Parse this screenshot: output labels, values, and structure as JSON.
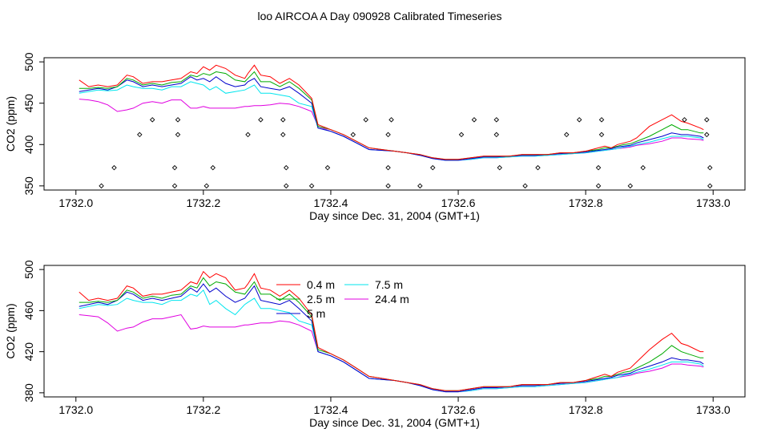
{
  "figure": {
    "title": "loo AIRCOA A  Day 090928  Calibrated Timeseries"
  },
  "colors": {
    "0.4 m": "#ff0000",
    "2.5 m": "#00aa00",
    "5 m": "#0000cc",
    "7.5 m": "#00e5ee",
    "24.4 m": "#e000e0",
    "markers": "#000000"
  },
  "chart_data": [
    {
      "type": "line",
      "title": "",
      "xlabel": "Day since Dec. 31, 2004 (GMT+1)",
      "ylabel": "CO2 (ppm)",
      "xlim": [
        1731.95,
        1733.05
      ],
      "ylim": [
        345,
        505
      ],
      "xticks": [
        "1732.0",
        "1732.2",
        "1732.4",
        "1732.6",
        "1732.8",
        "1733.0"
      ],
      "yticks": [
        "350",
        "400",
        "450",
        "500"
      ],
      "xtick_values": [
        1732.0,
        1732.2,
        1732.4,
        1732.6,
        1732.8,
        1733.0
      ],
      "ytick_values": [
        350,
        400,
        450,
        500
      ],
      "legend": "none",
      "grid": false,
      "x": [
        1732.005,
        1732.02,
        1732.035,
        1732.05,
        1732.065,
        1732.08,
        1732.09,
        1732.105,
        1732.12,
        1732.135,
        1732.15,
        1732.165,
        1732.18,
        1732.19,
        1732.2,
        1732.21,
        1732.22,
        1732.235,
        1732.25,
        1732.265,
        1732.27,
        1732.28,
        1732.29,
        1732.305,
        1732.32,
        1732.335,
        1732.35,
        1732.37,
        1732.38,
        1732.4,
        1732.42,
        1732.44,
        1732.46,
        1732.48,
        1732.5,
        1732.52,
        1732.54,
        1732.56,
        1732.58,
        1732.6,
        1732.62,
        1732.64,
        1732.66,
        1732.68,
        1732.7,
        1732.72,
        1732.74,
        1732.76,
        1732.78,
        1732.8,
        1732.81,
        1732.82,
        1732.83,
        1732.84,
        1732.85,
        1732.86,
        1732.87,
        1732.88,
        1732.9,
        1732.92,
        1732.935,
        1732.95,
        1732.96,
        1732.98,
        1732.985
      ],
      "series": [
        {
          "name": "0.4 m",
          "values": [
            478,
            470,
            472,
            470,
            472,
            484,
            482,
            474,
            476,
            476,
            478,
            480,
            488,
            486,
            494,
            490,
            496,
            492,
            484,
            480,
            486,
            496,
            484,
            482,
            474,
            480,
            472,
            456,
            424,
            418,
            412,
            404,
            396,
            394,
            392,
            390,
            388,
            384,
            382,
            382,
            384,
            386,
            386,
            386,
            388,
            388,
            388,
            390,
            390,
            392,
            394,
            396,
            398,
            396,
            400,
            402,
            404,
            408,
            422,
            430,
            436,
            428,
            426,
            420,
            418
          ]
        },
        {
          "name": "2.5 m",
          "values": [
            468,
            468,
            469,
            468,
            470,
            480,
            478,
            472,
            474,
            472,
            475,
            476,
            484,
            482,
            486,
            484,
            488,
            486,
            478,
            476,
            480,
            488,
            476,
            476,
            470,
            476,
            468,
            454,
            422,
            418,
            412,
            404,
            396,
            394,
            392,
            390,
            388,
            384,
            382,
            382,
            384,
            386,
            386,
            386,
            388,
            388,
            388,
            390,
            390,
            392,
            393,
            394,
            396,
            396,
            398,
            400,
            401,
            404,
            410,
            418,
            424,
            418,
            418,
            414,
            414
          ]
        },
        {
          "name": "5 m",
          "values": [
            464,
            466,
            468,
            466,
            470,
            478,
            476,
            470,
            472,
            470,
            472,
            474,
            482,
            478,
            480,
            476,
            482,
            474,
            470,
            472,
            476,
            480,
            470,
            468,
            466,
            470,
            462,
            450,
            420,
            416,
            410,
            402,
            394,
            393,
            392,
            390,
            387,
            383,
            381,
            381,
            383,
            385,
            385,
            386,
            387,
            387,
            388,
            389,
            390,
            391,
            392,
            393,
            394,
            395,
            397,
            398,
            399,
            402,
            406,
            410,
            414,
            412,
            412,
            410,
            408
          ]
        },
        {
          "name": "7.5 m",
          "values": [
            462,
            464,
            466,
            465,
            466,
            472,
            470,
            468,
            468,
            466,
            470,
            470,
            476,
            474,
            472,
            466,
            470,
            462,
            464,
            466,
            468,
            472,
            462,
            462,
            460,
            458,
            450,
            446,
            420,
            416,
            410,
            402,
            394,
            393,
            392,
            390,
            387,
            383,
            381,
            381,
            382,
            384,
            384,
            385,
            386,
            386,
            387,
            388,
            389,
            390,
            391,
            392,
            393,
            394,
            395,
            397,
            398,
            400,
            403,
            407,
            410,
            410,
            410,
            408,
            406
          ]
        },
        {
          "name": "24.4 m",
          "values": [
            455,
            454,
            452,
            448,
            440,
            442,
            444,
            450,
            452,
            450,
            454,
            454,
            444,
            444,
            446,
            444,
            444,
            444,
            444,
            446,
            446,
            447,
            447,
            448,
            450,
            449,
            446,
            440,
            422,
            416,
            410,
            402,
            394,
            393,
            392,
            390,
            387,
            383,
            381,
            381,
            382,
            384,
            384,
            385,
            386,
            386,
            387,
            388,
            389,
            390,
            391,
            392,
            393,
            394,
            395,
            396,
            397,
            399,
            401,
            404,
            408,
            408,
            407,
            406,
            405
          ]
        }
      ],
      "scatter": {
        "name": "markers",
        "x": [
          1732.04,
          1732.06,
          1732.1,
          1732.12,
          1732.155,
          1732.155,
          1732.16,
          1732.16,
          1732.205,
          1732.215,
          1732.27,
          1732.29,
          1732.325,
          1732.325,
          1732.33,
          1732.33,
          1732.37,
          1732.395,
          1732.435,
          1732.455,
          1732.49,
          1732.49,
          1732.49,
          1732.495,
          1732.54,
          1732.56,
          1732.605,
          1732.625,
          1732.66,
          1732.66,
          1732.665,
          1732.705,
          1732.725,
          1732.77,
          1732.79,
          1732.82,
          1732.82,
          1732.825,
          1732.825,
          1732.87,
          1732.89,
          1732.955,
          1732.99,
          1732.99,
          1732.995,
          1732.995
        ],
        "y": [
          350,
          372,
          412,
          430,
          350,
          372,
          412,
          430,
          350,
          372,
          412,
          430,
          430,
          412,
          372,
          350,
          350,
          372,
          412,
          430,
          350,
          372,
          412,
          430,
          350,
          372,
          412,
          430,
          430,
          412,
          372,
          350,
          372,
          412,
          430,
          350,
          372,
          412,
          430,
          350,
          372,
          430,
          430,
          412,
          372,
          350
        ]
      }
    },
    {
      "type": "line",
      "title": "",
      "xlabel": "Day since Dec. 31, 2004 (GMT+1)",
      "ylabel": "CO2 (ppm)",
      "xlim": [
        1731.95,
        1733.05
      ],
      "ylim": [
        376,
        504
      ],
      "xticks": [
        "1732.0",
        "1732.2",
        "1732.4",
        "1732.6",
        "1732.8",
        "1733.0"
      ],
      "yticks": [
        "380",
        "420",
        "460",
        "500"
      ],
      "xtick_values": [
        1732.0,
        1732.2,
        1732.4,
        1732.6,
        1732.8,
        1733.0
      ],
      "ytick_values": [
        380,
        420,
        460,
        500
      ],
      "legend": "top-center",
      "grid": false,
      "x": [
        1732.005,
        1732.02,
        1732.035,
        1732.05,
        1732.065,
        1732.08,
        1732.09,
        1732.105,
        1732.12,
        1732.135,
        1732.15,
        1732.165,
        1732.18,
        1732.19,
        1732.2,
        1732.21,
        1732.22,
        1732.235,
        1732.25,
        1732.265,
        1732.27,
        1732.28,
        1732.29,
        1732.305,
        1732.32,
        1732.335,
        1732.35,
        1732.37,
        1732.38,
        1732.4,
        1732.42,
        1732.44,
        1732.46,
        1732.48,
        1732.5,
        1732.52,
        1732.54,
        1732.56,
        1732.58,
        1732.6,
        1732.62,
        1732.64,
        1732.66,
        1732.68,
        1732.7,
        1732.72,
        1732.74,
        1732.76,
        1732.78,
        1732.8,
        1732.81,
        1732.82,
        1732.83,
        1732.84,
        1732.85,
        1732.86,
        1732.87,
        1732.88,
        1732.9,
        1732.92,
        1732.935,
        1732.95,
        1732.96,
        1732.98,
        1732.985
      ],
      "series": [
        {
          "name": "0.4 m",
          "values": [
            478,
            470,
            472,
            470,
            472,
            484,
            482,
            474,
            476,
            476,
            478,
            480,
            488,
            486,
            498,
            492,
            496,
            492,
            480,
            482,
            486,
            496,
            482,
            480,
            474,
            480,
            472,
            456,
            424,
            418,
            412,
            404,
            396,
            394,
            392,
            390,
            388,
            384,
            382,
            382,
            384,
            386,
            386,
            386,
            388,
            388,
            388,
            390,
            390,
            392,
            394,
            396,
            398,
            396,
            400,
            402,
            404,
            410,
            422,
            432,
            438,
            428,
            426,
            420,
            420
          ]
        },
        {
          "name": "2.5 m",
          "values": [
            468,
            468,
            469,
            468,
            470,
            480,
            478,
            472,
            474,
            472,
            475,
            476,
            484,
            482,
            492,
            484,
            488,
            486,
            478,
            476,
            480,
            488,
            476,
            476,
            470,
            476,
            468,
            454,
            422,
            418,
            412,
            404,
            396,
            394,
            392,
            390,
            388,
            384,
            382,
            382,
            384,
            386,
            386,
            386,
            388,
            388,
            388,
            390,
            390,
            392,
            393,
            394,
            396,
            396,
            398,
            400,
            401,
            404,
            410,
            418,
            426,
            420,
            418,
            414,
            414
          ]
        },
        {
          "name": "5 m",
          "values": [
            464,
            466,
            468,
            466,
            470,
            478,
            476,
            470,
            472,
            470,
            472,
            474,
            482,
            478,
            486,
            478,
            482,
            474,
            468,
            472,
            476,
            484,
            470,
            468,
            466,
            470,
            462,
            450,
            420,
            416,
            410,
            402,
            394,
            393,
            392,
            390,
            387,
            383,
            381,
            381,
            383,
            385,
            385,
            386,
            387,
            387,
            388,
            389,
            390,
            391,
            392,
            393,
            394,
            395,
            397,
            398,
            399,
            402,
            406,
            410,
            414,
            412,
            412,
            410,
            408
          ]
        },
        {
          "name": "7.5 m",
          "values": [
            462,
            464,
            466,
            465,
            466,
            472,
            470,
            468,
            468,
            466,
            470,
            470,
            476,
            474,
            480,
            466,
            470,
            462,
            456,
            466,
            468,
            472,
            462,
            462,
            460,
            458,
            450,
            446,
            420,
            416,
            410,
            402,
            394,
            393,
            392,
            390,
            387,
            383,
            381,
            381,
            382,
            384,
            384,
            385,
            386,
            386,
            387,
            388,
            389,
            390,
            391,
            392,
            393,
            394,
            395,
            397,
            398,
            400,
            403,
            407,
            410,
            410,
            410,
            408,
            406
          ]
        },
        {
          "name": "24.4 m",
          "values": [
            456,
            455,
            454,
            448,
            440,
            443,
            444,
            449,
            452,
            452,
            454,
            456,
            442,
            443,
            445,
            444,
            444,
            444,
            444,
            446,
            446,
            447,
            448,
            448,
            450,
            449,
            446,
            440,
            420,
            416,
            410,
            402,
            394,
            393,
            392,
            390,
            387,
            383,
            381,
            381,
            382,
            384,
            384,
            385,
            386,
            386,
            387,
            388,
            389,
            390,
            391,
            392,
            393,
            394,
            395,
            396,
            397,
            399,
            401,
            404,
            408,
            408,
            407,
            406,
            405
          ]
        }
      ],
      "legend_entries": [
        "0.4 m",
        "2.5 m",
        "5 m",
        "7.5 m",
        "24.4 m"
      ]
    }
  ]
}
